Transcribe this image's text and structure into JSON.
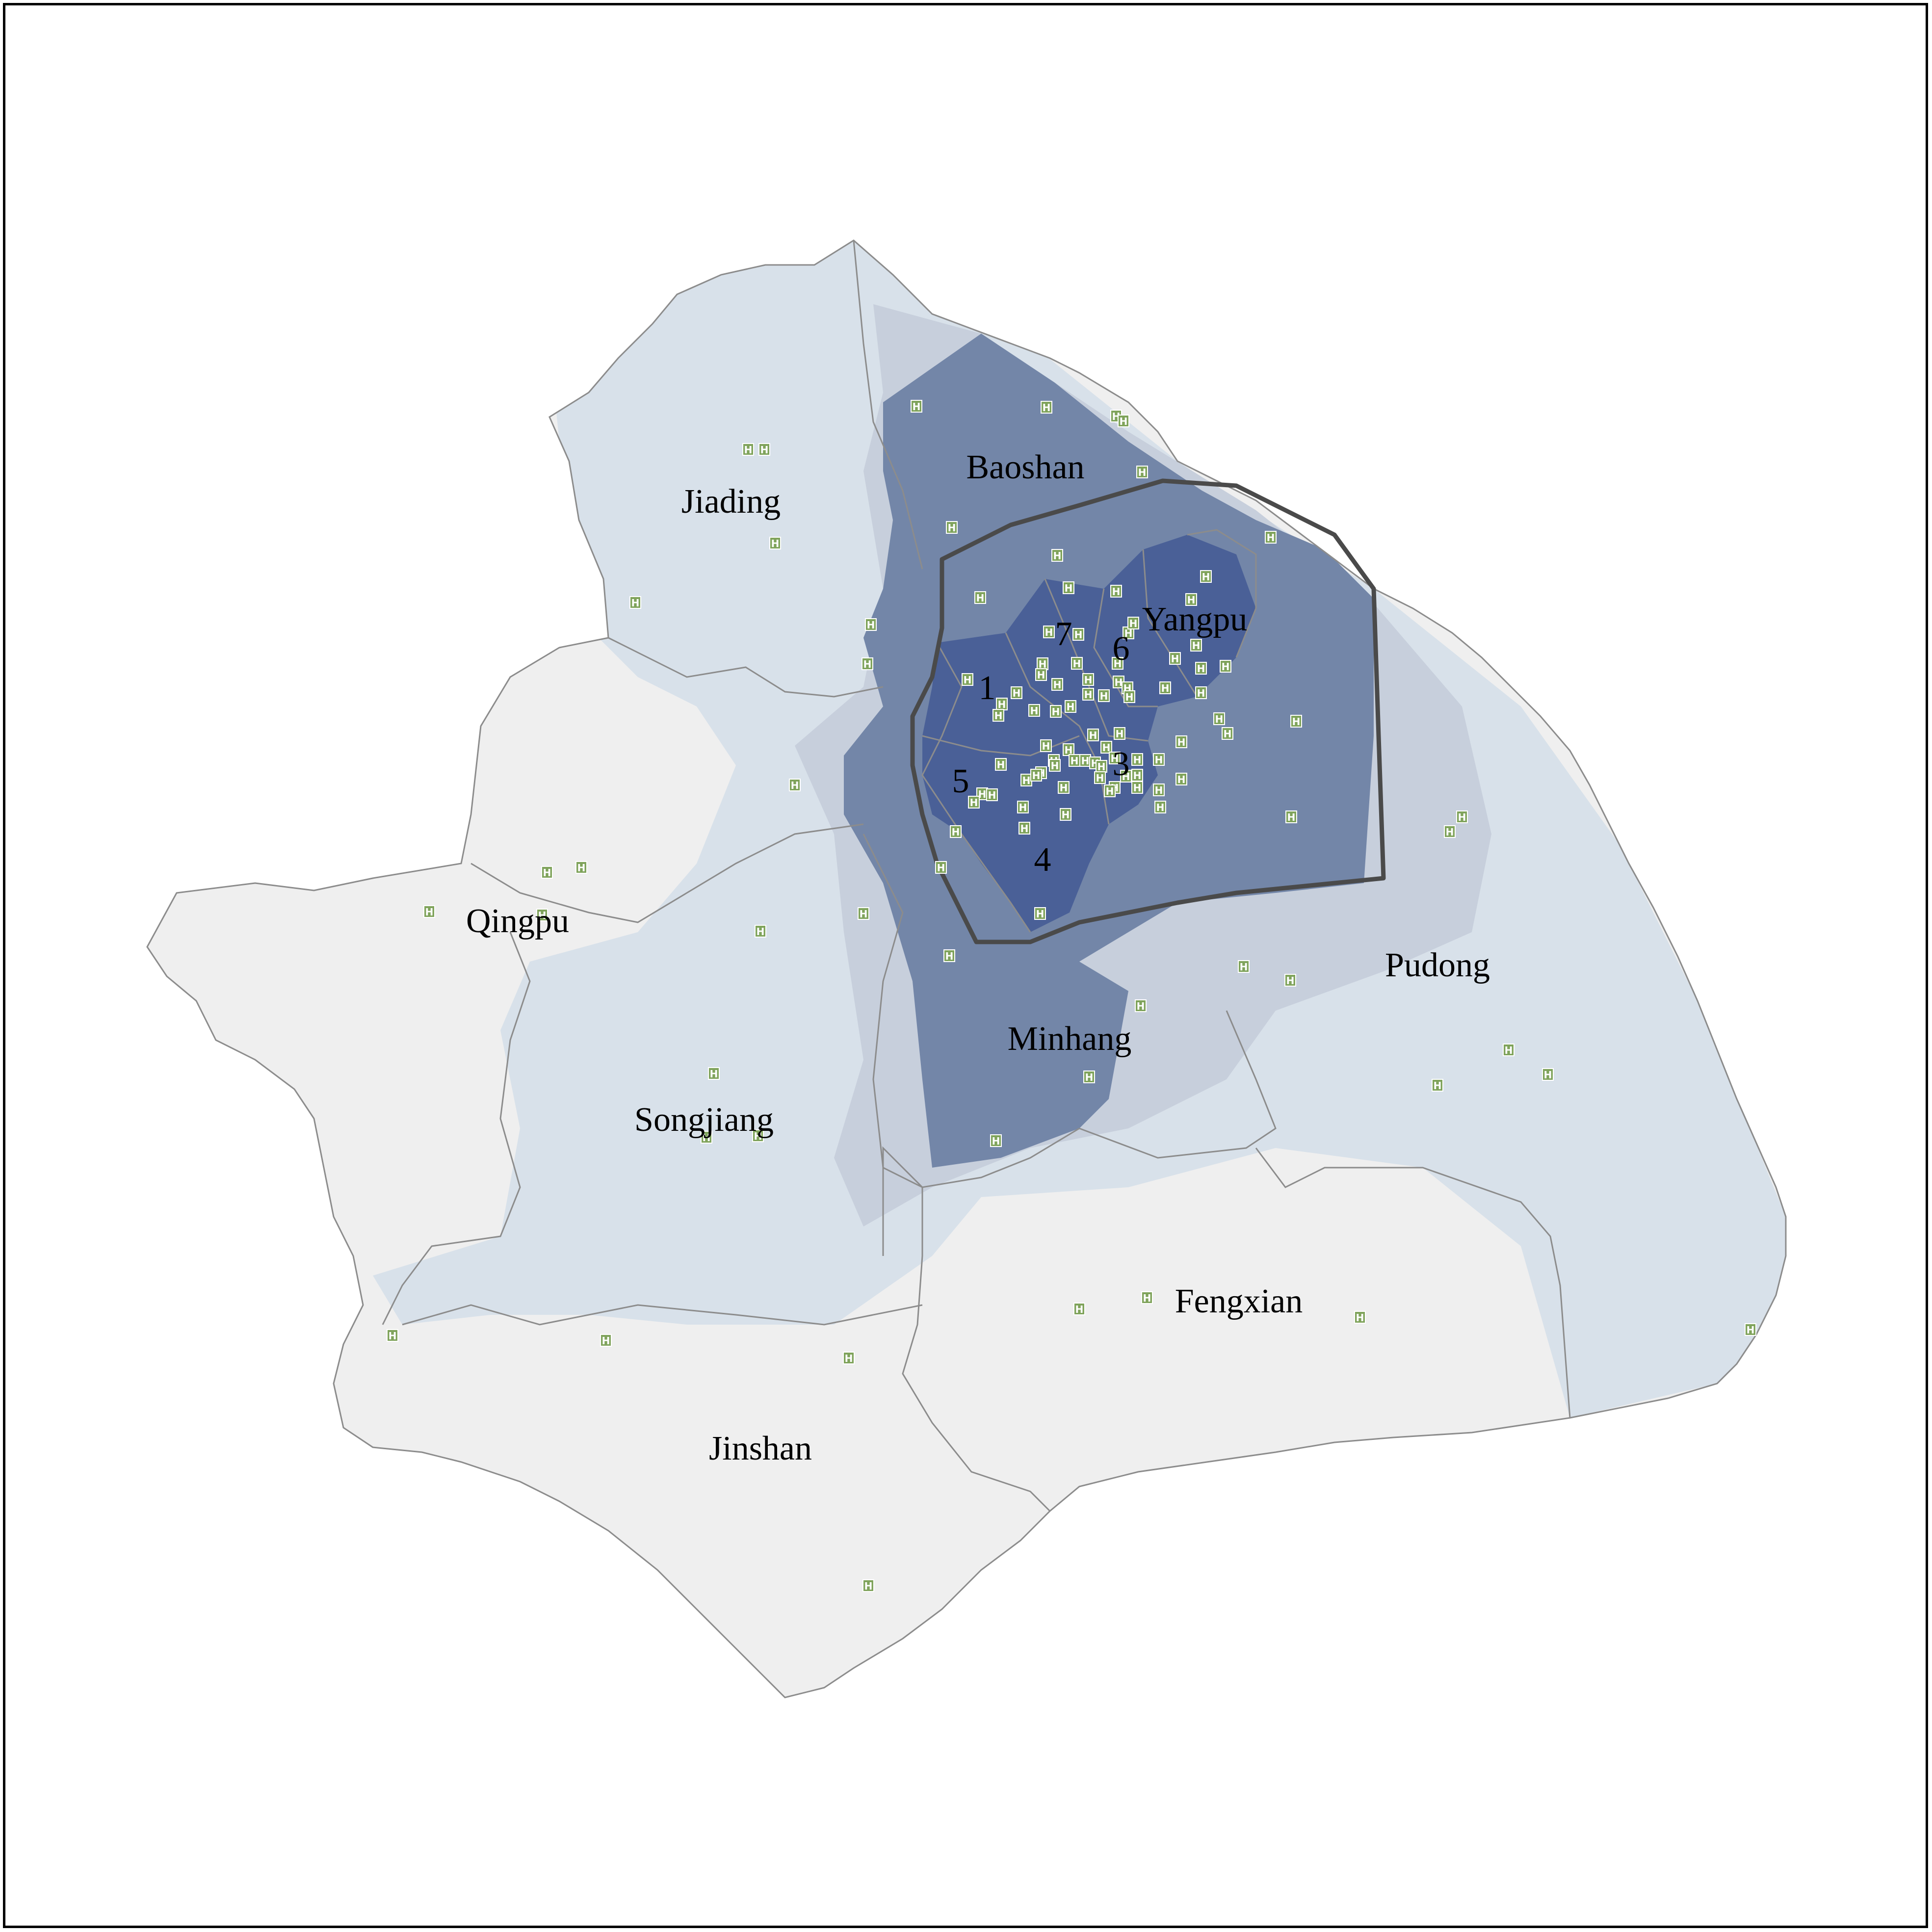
{
  "map": {
    "colors": {
      "background": "#ffffff",
      "outside_land": "#efefef",
      "density_low": "#d8e1ea",
      "density_mid": "#c7cfdc",
      "density_high": "#7386a8",
      "density_core": "#4a6097",
      "district_border": "#8c8c8c",
      "ring_road": "#4a4a4a",
      "hospital_fill": "#7fa35b",
      "hospital_text": "#ffffff"
    },
    "districts": [
      {
        "id": "jiading",
        "name": "Jiading"
      },
      {
        "id": "baoshan",
        "name": "Baoshan"
      },
      {
        "id": "yangpu",
        "name": "Yangpu"
      },
      {
        "id": "qingpu",
        "name": "Qingpu"
      },
      {
        "id": "pudong",
        "name": "Pudong"
      },
      {
        "id": "minhang",
        "name": "Minhang"
      },
      {
        "id": "songjiang",
        "name": "Songjiang"
      },
      {
        "id": "fengxian",
        "name": "Fengxian"
      },
      {
        "id": "jinshan",
        "name": "Jinshan"
      }
    ],
    "central_districts": [
      {
        "id": "c1",
        "label": "1"
      },
      {
        "id": "c3",
        "label": "3"
      },
      {
        "id": "c4",
        "label": "4"
      },
      {
        "id": "c5",
        "label": "5"
      },
      {
        "id": "c6",
        "label": "6"
      },
      {
        "id": "c7",
        "label": "7"
      }
    ],
    "hospital_symbol": "H",
    "hospital_icon": "hospital-icon"
  }
}
